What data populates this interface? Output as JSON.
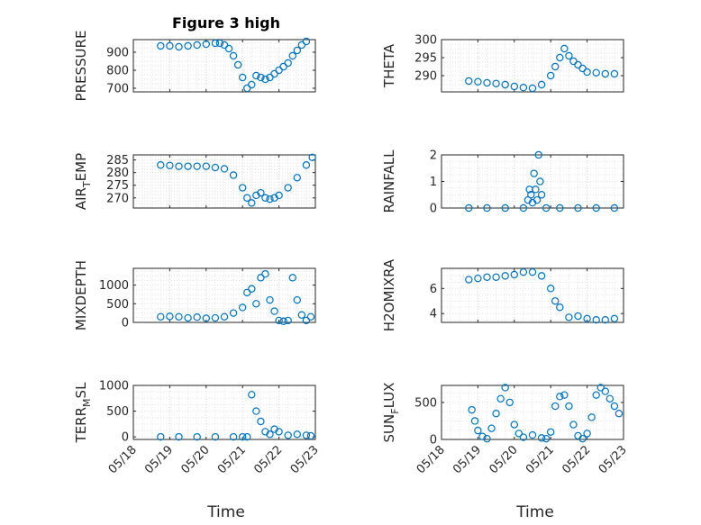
{
  "figure": {
    "title": "Figure 3 high",
    "xlabel": "Time",
    "date_ticks": [
      "05/18",
      "05/19",
      "05/20",
      "05/21",
      "05/22",
      "05/23"
    ],
    "marker_color": "#0072BD",
    "axes_color": "#262626",
    "grid": true,
    "grid_style": "dotted"
  },
  "chart_data": [
    {
      "type": "scatter",
      "ylabel": {
        "main": "PRESSURE"
      },
      "xlim": [
        "2024-05-18",
        "2024-05-23"
      ],
      "ylim": [
        680,
        970
      ],
      "yticks": [
        700,
        800,
        900
      ],
      "show_x_ticklabels": false,
      "x": [
        "2024-05-18T18:00",
        "2024-05-19T00:00",
        "2024-05-19T06:00",
        "2024-05-19T12:00",
        "2024-05-19T18:00",
        "2024-05-20T00:00",
        "2024-05-20T06:00",
        "2024-05-20T09:00",
        "2024-05-20T12:00",
        "2024-05-20T15:00",
        "2024-05-20T18:00",
        "2024-05-20T21:00",
        "2024-05-21T00:00",
        "2024-05-21T03:00",
        "2024-05-21T06:00",
        "2024-05-21T09:00",
        "2024-05-21T12:00",
        "2024-05-21T15:00",
        "2024-05-21T18:00",
        "2024-05-21T21:00",
        "2024-05-22T00:00",
        "2024-05-22T03:00",
        "2024-05-22T06:00",
        "2024-05-22T09:00",
        "2024-05-22T12:00",
        "2024-05-22T15:00",
        "2024-05-22T18:00"
      ],
      "y": [
        935,
        935,
        930,
        935,
        940,
        945,
        950,
        950,
        940,
        920,
        880,
        830,
        760,
        700,
        720,
        770,
        760,
        750,
        760,
        780,
        800,
        820,
        840,
        880,
        910,
        940,
        960
      ]
    },
    {
      "type": "scatter",
      "ylabel": {
        "main": "THETA"
      },
      "xlim": [
        "2024-05-18",
        "2024-05-23"
      ],
      "ylim": [
        285.5,
        300
      ],
      "yticks": [
        290,
        295,
        300
      ],
      "show_x_ticklabels": false,
      "x": [
        "2024-05-18T18:00",
        "2024-05-19T00:00",
        "2024-05-19T06:00",
        "2024-05-19T12:00",
        "2024-05-19T18:00",
        "2024-05-20T00:00",
        "2024-05-20T06:00",
        "2024-05-20T12:00",
        "2024-05-20T18:00",
        "2024-05-21T00:00",
        "2024-05-21T03:00",
        "2024-05-21T06:00",
        "2024-05-21T09:00",
        "2024-05-21T12:00",
        "2024-05-21T15:00",
        "2024-05-21T18:00",
        "2024-05-21T21:00",
        "2024-05-22T00:00",
        "2024-05-22T06:00",
        "2024-05-22T12:00",
        "2024-05-22T18:00"
      ],
      "y": [
        288.5,
        288.3,
        288,
        287.8,
        287.5,
        287,
        286.7,
        286.5,
        287.5,
        290,
        292.5,
        295,
        297.5,
        295.5,
        294,
        293,
        292,
        291,
        290.8,
        290.5,
        290.5
      ]
    },
    {
      "type": "scatter",
      "ylabel": {
        "main": "AIR",
        "sub": "T",
        "rest": "EMP"
      },
      "xlim": [
        "2024-05-18",
        "2024-05-23"
      ],
      "ylim": [
        266,
        287
      ],
      "yticks": [
        270,
        275,
        280,
        285
      ],
      "show_x_ticklabels": false,
      "x": [
        "2024-05-18T18:00",
        "2024-05-19T00:00",
        "2024-05-19T06:00",
        "2024-05-19T12:00",
        "2024-05-19T18:00",
        "2024-05-20T00:00",
        "2024-05-20T06:00",
        "2024-05-20T12:00",
        "2024-05-20T18:00",
        "2024-05-21T00:00",
        "2024-05-21T03:00",
        "2024-05-21T06:00",
        "2024-05-21T09:00",
        "2024-05-21T12:00",
        "2024-05-21T15:00",
        "2024-05-21T18:00",
        "2024-05-21T21:00",
        "2024-05-22T00:00",
        "2024-05-22T06:00",
        "2024-05-22T12:00",
        "2024-05-22T18:00",
        "2024-05-22T22:00"
      ],
      "y": [
        283,
        282.8,
        282.5,
        282.5,
        282.5,
        282.5,
        282,
        281.5,
        279,
        274,
        270,
        268,
        271,
        272,
        270,
        269.5,
        270,
        271,
        274,
        278,
        283,
        286
      ]
    },
    {
      "type": "scatter",
      "ylabel": {
        "main": "RAINFALL"
      },
      "xlim": [
        "2024-05-18",
        "2024-05-23"
      ],
      "ylim": [
        0,
        2
      ],
      "yticks": [
        0,
        1,
        2
      ],
      "show_x_ticklabels": false,
      "x": [
        "2024-05-18T18:00",
        "2024-05-19T06:00",
        "2024-05-19T18:00",
        "2024-05-20T06:00",
        "2024-05-20T09:00",
        "2024-05-20T10:00",
        "2024-05-20T11:00",
        "2024-05-20T12:00",
        "2024-05-20T13:00",
        "2024-05-20T14:00",
        "2024-05-20T15:00",
        "2024-05-20T16:00",
        "2024-05-20T17:00",
        "2024-05-20T18:00",
        "2024-05-20T21:00",
        "2024-05-21T06:00",
        "2024-05-21T18:00",
        "2024-05-22T06:00",
        "2024-05-22T18:00"
      ],
      "y": [
        0,
        0,
        0,
        0,
        0.3,
        0.7,
        0.5,
        0.2,
        1.3,
        0.7,
        0.3,
        2.0,
        1.0,
        0.5,
        0,
        0,
        0,
        0,
        0
      ]
    },
    {
      "type": "scatter",
      "ylabel": {
        "main": "MIXDEPTH"
      },
      "xlim": [
        "2024-05-18",
        "2024-05-23"
      ],
      "ylim": [
        0,
        1450
      ],
      "yticks": [
        0,
        500,
        1000
      ],
      "show_x_ticklabels": false,
      "x": [
        "2024-05-18T18:00",
        "2024-05-19T00:00",
        "2024-05-19T06:00",
        "2024-05-19T12:00",
        "2024-05-19T18:00",
        "2024-05-20T00:00",
        "2024-05-20T06:00",
        "2024-05-20T12:00",
        "2024-05-20T18:00",
        "2024-05-21T00:00",
        "2024-05-21T03:00",
        "2024-05-21T06:00",
        "2024-05-21T09:00",
        "2024-05-21T12:00",
        "2024-05-21T15:00",
        "2024-05-21T18:00",
        "2024-05-21T21:00",
        "2024-05-22T00:00",
        "2024-05-22T03:00",
        "2024-05-22T06:00",
        "2024-05-22T09:00",
        "2024-05-22T12:00",
        "2024-05-22T15:00",
        "2024-05-22T18:00",
        "2024-05-22T21:00"
      ],
      "y": [
        150,
        160,
        150,
        120,
        140,
        110,
        120,
        150,
        250,
        400,
        800,
        900,
        500,
        1200,
        1300,
        600,
        300,
        50,
        30,
        50,
        1200,
        600,
        200,
        50,
        150
      ]
    },
    {
      "type": "scatter",
      "ylabel": {
        "main": "H2OMIXRA"
      },
      "xlim": [
        "2024-05-18",
        "2024-05-23"
      ],
      "ylim": [
        3.3,
        7.6
      ],
      "yticks": [
        4,
        6
      ],
      "show_x_ticklabels": false,
      "x": [
        "2024-05-18T18:00",
        "2024-05-19T00:00",
        "2024-05-19T06:00",
        "2024-05-19T12:00",
        "2024-05-19T18:00",
        "2024-05-20T00:00",
        "2024-05-20T06:00",
        "2024-05-20T12:00",
        "2024-05-20T18:00",
        "2024-05-21T00:00",
        "2024-05-21T03:00",
        "2024-05-21T06:00",
        "2024-05-21T12:00",
        "2024-05-21T18:00",
        "2024-05-22T00:00",
        "2024-05-22T06:00",
        "2024-05-22T12:00",
        "2024-05-22T18:00"
      ],
      "y": [
        6.7,
        6.8,
        6.9,
        6.9,
        7.0,
        7.1,
        7.3,
        7.3,
        7.0,
        6.0,
        5.0,
        4.5,
        3.7,
        3.8,
        3.6,
        3.5,
        3.5,
        3.6
      ]
    },
    {
      "type": "scatter",
      "ylabel": {
        "main": "TERR",
        "sub": "M",
        "rest": "SL"
      },
      "xlim": [
        "2024-05-18",
        "2024-05-23"
      ],
      "ylim": [
        -50,
        1000
      ],
      "yticks": [
        0,
        500,
        1000
      ],
      "show_x_ticklabels": true,
      "x": [
        "2024-05-18T18:00",
        "2024-05-19T06:00",
        "2024-05-19T18:00",
        "2024-05-20T06:00",
        "2024-05-20T18:00",
        "2024-05-21T00:00",
        "2024-05-21T03:00",
        "2024-05-21T06:00",
        "2024-05-21T09:00",
        "2024-05-21T12:00",
        "2024-05-21T15:00",
        "2024-05-21T18:00",
        "2024-05-21T21:00",
        "2024-05-22T00:00",
        "2024-05-22T06:00",
        "2024-05-22T12:00",
        "2024-05-22T18:00",
        "2024-05-22T21:00"
      ],
      "y": [
        0,
        0,
        0,
        0,
        0,
        0,
        0,
        820,
        500,
        300,
        100,
        50,
        150,
        100,
        30,
        50,
        30,
        20
      ]
    },
    {
      "type": "scatter",
      "ylabel": {
        "main": "SUN",
        "sub": "F",
        "rest": "LUX"
      },
      "xlim": [
        "2024-05-18",
        "2024-05-23"
      ],
      "ylim": [
        0,
        730
      ],
      "yticks": [
        0,
        500
      ],
      "show_x_ticklabels": true,
      "x": [
        "2024-05-18T20:00",
        "2024-05-18T22:00",
        "2024-05-19T00:00",
        "2024-05-19T03:00",
        "2024-05-19T06:00",
        "2024-05-19T09:00",
        "2024-05-19T12:00",
        "2024-05-19T15:00",
        "2024-05-19T18:00",
        "2024-05-19T21:00",
        "2024-05-20T00:00",
        "2024-05-20T03:00",
        "2024-05-20T06:00",
        "2024-05-20T12:00",
        "2024-05-20T18:00",
        "2024-05-20T21:00",
        "2024-05-21T00:00",
        "2024-05-21T03:00",
        "2024-05-21T06:00",
        "2024-05-21T09:00",
        "2024-05-21T12:00",
        "2024-05-21T15:00",
        "2024-05-21T18:00",
        "2024-05-21T21:00",
        "2024-05-22T00:00",
        "2024-05-22T03:00",
        "2024-05-22T06:00",
        "2024-05-22T09:00",
        "2024-05-22T12:00",
        "2024-05-22T15:00",
        "2024-05-22T18:00",
        "2024-05-22T21:00"
      ],
      "y": [
        400,
        250,
        120,
        40,
        10,
        150,
        350,
        550,
        700,
        500,
        200,
        80,
        30,
        60,
        20,
        10,
        100,
        450,
        580,
        600,
        450,
        200,
        50,
        10,
        80,
        300,
        600,
        700,
        650,
        550,
        450,
        350
      ]
    }
  ]
}
